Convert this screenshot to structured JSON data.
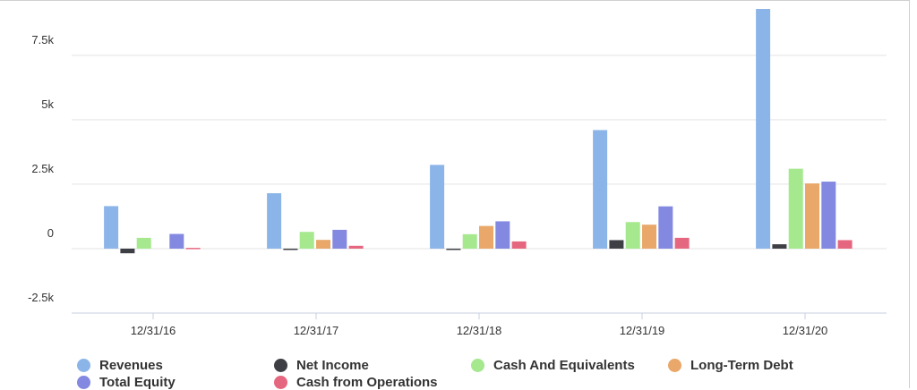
{
  "chart_data": {
    "type": "bar",
    "categories": [
      "12/31/16",
      "12/31/17",
      "12/31/18",
      "12/31/19",
      "12/31/20"
    ],
    "series": [
      {
        "name": "Revenues",
        "color": "#8bb5e8",
        "values": [
          1650,
          2150,
          3250,
          4600,
          9300
        ]
      },
      {
        "name": "Net Income",
        "color": "#3d3f45",
        "values": [
          -180,
          -50,
          -40,
          330,
          170
        ]
      },
      {
        "name": "Cash And Equivalents",
        "color": "#a5e88d",
        "values": [
          420,
          650,
          560,
          1030,
          3100
        ]
      },
      {
        "name": "Long-Term Debt",
        "color": "#e9a86a",
        "values": [
          null,
          340,
          880,
          930,
          2530
        ]
      },
      {
        "name": "Total Equity",
        "color": "#8388e0",
        "values": [
          570,
          730,
          1060,
          1640,
          2600
        ]
      },
      {
        "name": "Cash from Operations",
        "color": "#e5677f",
        "values": [
          30,
          110,
          280,
          420,
          330
        ]
      }
    ],
    "y_ticks": [
      {
        "value": 7500,
        "label": "7.5k"
      },
      {
        "value": 5000,
        "label": "5k"
      },
      {
        "value": 2500,
        "label": "2.5k"
      },
      {
        "value": 0,
        "label": "0"
      },
      {
        "value": -2500,
        "label": "-2.5k"
      }
    ],
    "ylim": [
      -2500,
      9300
    ],
    "grid": true,
    "legend_position": "bottom"
  }
}
